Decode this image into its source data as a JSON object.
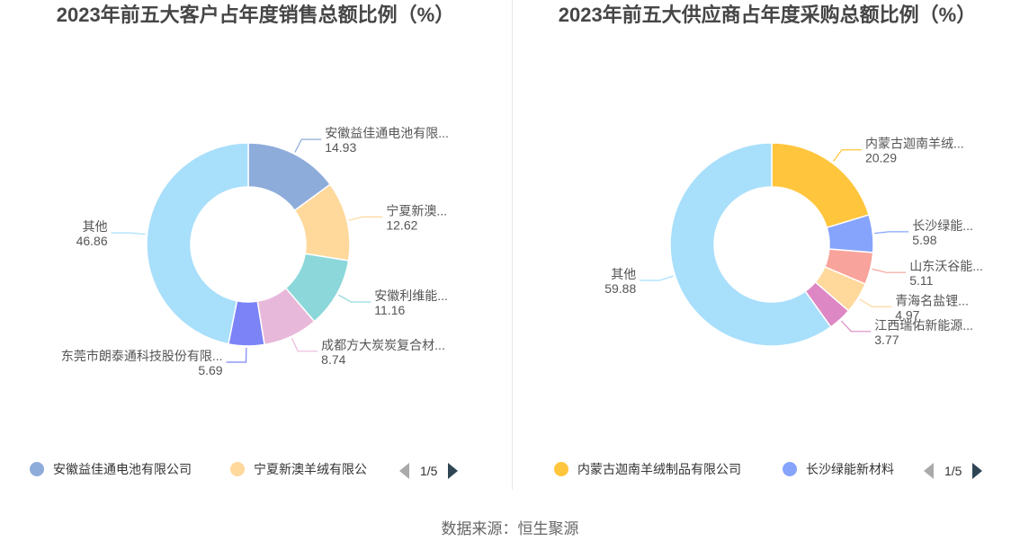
{
  "source_text": "数据来源：恒生聚源",
  "charts": [
    {
      "id": "left",
      "title": "2023年前五大客户占年度销售总额比例（%）",
      "legend": [
        {
          "label": "安徽益佳通电池有限公司",
          "color": "#8eacda"
        },
        {
          "label": "宁夏新澳羊绒有限公",
          "color": "#ffd89b"
        }
      ],
      "pager": "1/5"
    },
    {
      "id": "right",
      "title": "2023年前五大供应商占年度采购总额比例（%）",
      "legend": [
        {
          "label": "内蒙古迦南羊绒制品有限公司",
          "color": "#ffc53d"
        },
        {
          "label": "长沙绿能新材料",
          "color": "#86a4fb"
        }
      ],
      "pager": "1/5"
    }
  ],
  "chart_data": [
    {
      "type": "pie",
      "donut": true,
      "title": "2023年前五大客户占年度销售总额比例（%）",
      "slices": [
        {
          "name": "安徽益佳通电池有限...",
          "value": 14.93,
          "color": "#8eacda"
        },
        {
          "name": "宁夏新澳...",
          "value": 12.62,
          "color": "#ffd89b"
        },
        {
          "name": "安徽利维能...",
          "value": 11.16,
          "color": "#8bd7da"
        },
        {
          "name": "成都方大炭炭复合材...",
          "value": 8.74,
          "color": "#e8b8da"
        },
        {
          "name": "东莞市朗泰通科技股份有限...",
          "value": 5.69,
          "color": "#7b83f6"
        },
        {
          "name": "其他",
          "value": 46.86,
          "color": "#a8dffb"
        }
      ]
    },
    {
      "type": "pie",
      "donut": true,
      "title": "2023年前五大供应商占年度采购总额比例（%）",
      "slices": [
        {
          "name": "内蒙古迦南羊绒...",
          "value": 20.29,
          "color": "#ffc53d"
        },
        {
          "name": "长沙绿能...",
          "value": 5.98,
          "color": "#86a4fb"
        },
        {
          "name": "山东沃谷能...",
          "value": 5.11,
          "color": "#f8a39b"
        },
        {
          "name": "青海名盐锂...",
          "value": 4.97,
          "color": "#ffd89b"
        },
        {
          "name": "江西瑞佑新能源...",
          "value": 3.77,
          "color": "#dd88c4"
        },
        {
          "name": "其他",
          "value": 59.88,
          "color": "#a8dffb"
        }
      ]
    }
  ]
}
